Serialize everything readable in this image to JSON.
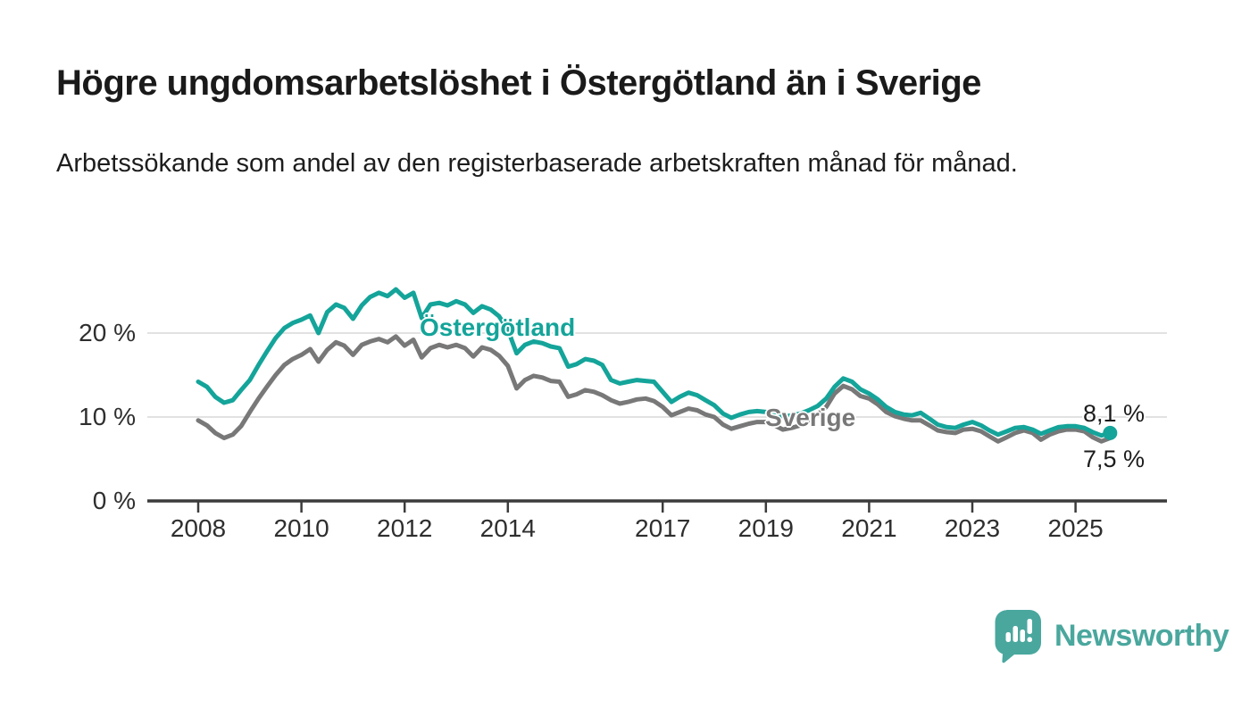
{
  "header": {
    "title": "Högre ungdomsarbetslöshet i Östergötland än i Sverige",
    "subtitle": "Arbetssökande som andel av den registerbaserade arbetskraften månad för månad."
  },
  "chart_data": {
    "type": "line",
    "title": "Högre ungdomsarbetslöshet i Östergötland än i Sverige",
    "xlabel": "",
    "ylabel": "Arbetssökande som andel av den registerbaserade arbetskraften",
    "grid": "horizontal",
    "legend_position": "inline-labels-on-lines",
    "xlim": [
      2007.55,
      2026.3
    ],
    "ylim": [
      0,
      26
    ],
    "x_ticks": [
      {
        "value": 2008,
        "label": "2008"
      },
      {
        "value": 2010,
        "label": "2010"
      },
      {
        "value": 2012,
        "label": "2012"
      },
      {
        "value": 2014,
        "label": "2014"
      },
      {
        "value": 2017,
        "label": "2017"
      },
      {
        "value": 2019,
        "label": "2019"
      },
      {
        "value": 2021,
        "label": "2021"
      },
      {
        "value": 2023,
        "label": "2023"
      },
      {
        "value": 2025,
        "label": "2025"
      }
    ],
    "y_ticks": [
      {
        "value": 0,
        "label": "0 %"
      },
      {
        "value": 10,
        "label": "10 %"
      },
      {
        "value": 20,
        "label": "20 %"
      }
    ],
    "x": [
      2008.0,
      2008.17,
      2008.33,
      2008.5,
      2008.67,
      2008.83,
      2009.0,
      2009.17,
      2009.33,
      2009.5,
      2009.67,
      2009.83,
      2010.0,
      2010.17,
      2010.33,
      2010.5,
      2010.67,
      2010.83,
      2011.0,
      2011.17,
      2011.33,
      2011.5,
      2011.67,
      2011.83,
      2012.0,
      2012.17,
      2012.33,
      2012.5,
      2012.67,
      2012.83,
      2013.0,
      2013.17,
      2013.33,
      2013.5,
      2013.67,
      2013.83,
      2014.0,
      2014.17,
      2014.33,
      2014.5,
      2014.67,
      2014.83,
      2015.0,
      2015.17,
      2015.33,
      2015.5,
      2015.67,
      2015.83,
      2016.0,
      2016.17,
      2016.33,
      2016.5,
      2016.67,
      2016.83,
      2017.0,
      2017.17,
      2017.33,
      2017.5,
      2017.67,
      2017.83,
      2018.0,
      2018.17,
      2018.33,
      2018.5,
      2018.67,
      2018.83,
      2019.0,
      2019.17,
      2019.33,
      2019.5,
      2019.67,
      2019.83,
      2020.0,
      2020.17,
      2020.33,
      2020.5,
      2020.67,
      2020.83,
      2021.0,
      2021.17,
      2021.33,
      2021.5,
      2021.67,
      2021.83,
      2022.0,
      2022.17,
      2022.33,
      2022.5,
      2022.67,
      2022.83,
      2023.0,
      2023.17,
      2023.33,
      2023.5,
      2023.67,
      2023.83,
      2024.0,
      2024.17,
      2024.33,
      2024.5,
      2024.67,
      2024.83,
      2025.0,
      2025.17,
      2025.33,
      2025.5,
      2025.67
    ],
    "series": [
      {
        "name": "Östergötland",
        "color": "#14a49a",
        "end_label": "8,1 %",
        "end_value": 8.1,
        "end_dot": true,
        "values": [
          14.2,
          13.6,
          12.4,
          11.7,
          12.0,
          13.2,
          14.4,
          16.2,
          17.8,
          19.4,
          20.6,
          21.2,
          21.6,
          22.1,
          20.0,
          22.5,
          23.4,
          23.0,
          21.7,
          23.3,
          24.3,
          24.8,
          24.4,
          25.2,
          24.2,
          24.8,
          21.8,
          23.4,
          23.6,
          23.3,
          23.8,
          23.4,
          22.4,
          23.2,
          22.8,
          22.0,
          20.4,
          17.6,
          18.6,
          19.0,
          18.8,
          18.4,
          18.2,
          16.0,
          16.3,
          16.9,
          16.7,
          16.2,
          14.4,
          14.0,
          14.2,
          14.4,
          14.3,
          14.2,
          13.0,
          11.8,
          12.4,
          12.9,
          12.6,
          12.0,
          11.4,
          10.4,
          9.9,
          10.3,
          10.6,
          10.7,
          10.6,
          10.3,
          10.0,
          10.2,
          10.4,
          10.8,
          11.3,
          12.2,
          13.6,
          14.6,
          14.2,
          13.3,
          12.8,
          12.1,
          11.2,
          10.6,
          10.3,
          10.2,
          10.5,
          9.8,
          9.1,
          8.8,
          8.7,
          9.1,
          9.4,
          9.0,
          8.4,
          7.9,
          8.3,
          8.7,
          8.8,
          8.5,
          8.0,
          8.4,
          8.8,
          8.9,
          8.9,
          8.7,
          8.2,
          7.8,
          8.1
        ]
      },
      {
        "name": "Sverige",
        "color": "#787878",
        "end_label": "7,5 %",
        "end_value": 7.5,
        "end_dot": false,
        "values": [
          9.6,
          9.0,
          8.1,
          7.5,
          7.9,
          8.9,
          10.6,
          12.2,
          13.6,
          15.0,
          16.2,
          16.9,
          17.4,
          18.1,
          16.6,
          18.0,
          18.9,
          18.5,
          17.4,
          18.6,
          19.0,
          19.3,
          18.9,
          19.6,
          18.5,
          19.2,
          17.1,
          18.2,
          18.6,
          18.3,
          18.6,
          18.2,
          17.2,
          18.3,
          18.0,
          17.3,
          16.1,
          13.4,
          14.4,
          14.9,
          14.7,
          14.3,
          14.2,
          12.4,
          12.7,
          13.2,
          13.0,
          12.6,
          12.0,
          11.6,
          11.8,
          12.1,
          12.2,
          11.9,
          11.2,
          10.2,
          10.6,
          11.0,
          10.8,
          10.3,
          10.0,
          9.1,
          8.6,
          8.9,
          9.2,
          9.4,
          9.4,
          9.0,
          8.5,
          8.7,
          9.0,
          9.6,
          10.3,
          11.2,
          12.8,
          13.7,
          13.3,
          12.5,
          12.2,
          11.5,
          10.6,
          10.1,
          9.8,
          9.6,
          9.6,
          9.0,
          8.4,
          8.2,
          8.1,
          8.5,
          8.6,
          8.3,
          7.7,
          7.1,
          7.6,
          8.1,
          8.4,
          8.1,
          7.3,
          7.9,
          8.3,
          8.5,
          8.5,
          8.3,
          7.6,
          7.1,
          7.5
        ]
      }
    ],
    "style": {
      "gridline_color": "#d9d9d9",
      "axis_color": "#3b3b3b",
      "tick_label_color": "#2e2e2e"
    }
  },
  "branding": {
    "logo_text": "Newsworthy",
    "logo_color": "#4aa79e",
    "logo_icon": "bar-chart-speech-bubble-icon"
  }
}
